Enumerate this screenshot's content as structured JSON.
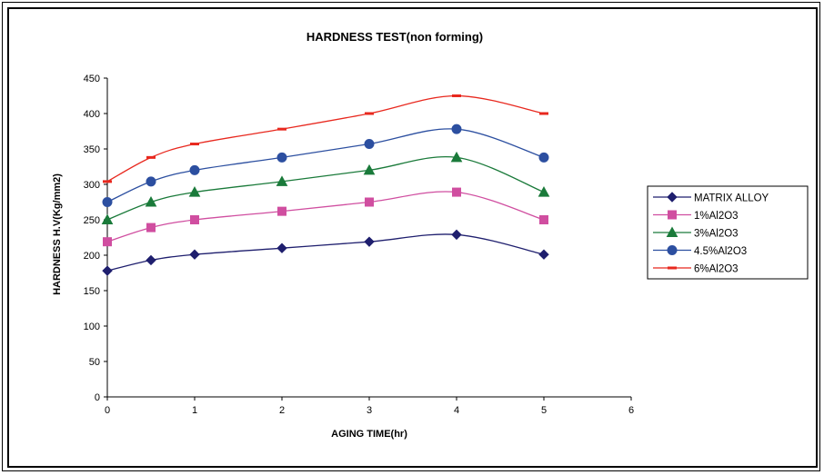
{
  "chart_data": {
    "type": "line",
    "title": "HARDNESS TEST(non forming)",
    "xlabel": "AGING TIME(hr)",
    "ylabel": "HARDNESS H.V(Kg/mm2)",
    "xlim": [
      0,
      6
    ],
    "ylim": [
      0,
      450
    ],
    "xticks": [
      0,
      1,
      2,
      3,
      4,
      5,
      6
    ],
    "yticks": [
      0,
      50,
      100,
      150,
      200,
      250,
      300,
      350,
      400,
      450
    ],
    "grid": false,
    "smooth": true,
    "legend_position": "right",
    "x": [
      0,
      0.5,
      1,
      2,
      3,
      4,
      5
    ],
    "series": [
      {
        "name": "MATRIX ALLOY",
        "values": [
          178,
          193,
          201,
          210,
          219,
          229,
          201
        ],
        "color": "#1f1f6e",
        "marker": "diamond"
      },
      {
        "name": "1%Al2O3",
        "values": [
          219,
          239,
          250,
          262,
          275,
          289,
          250
        ],
        "color": "#d04ea0",
        "marker": "square"
      },
      {
        "name": "3%Al2O3",
        "values": [
          250,
          275,
          289,
          304,
          320,
          338,
          289
        ],
        "color": "#1a7a3a",
        "marker": "triangle"
      },
      {
        "name": "4.5%Al2O3",
        "values": [
          275,
          304,
          320,
          338,
          357,
          378,
          338
        ],
        "color": "#2c4fa0",
        "marker": "circle"
      },
      {
        "name": "6%Al2O3",
        "values": [
          304,
          338,
          357,
          378,
          400,
          425,
          400
        ],
        "color": "#e8281e",
        "marker": "dash"
      }
    ]
  }
}
